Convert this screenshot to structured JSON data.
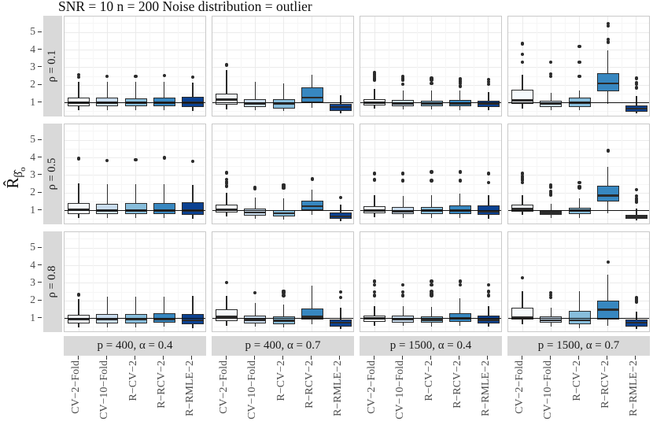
{
  "chart_data": {
    "type": "boxplot-facets",
    "title": "SNR = 10 n = 200 Noise distribution = outlier",
    "ylabel_main": "R̂",
    "ylabel_sub": "β̂",
    "ylabel_subsub": "o",
    "y_ticks": [
      1,
      2,
      3,
      4,
      5
    ],
    "ylim": [
      0.18,
      5.9
    ],
    "grid": "on",
    "legend": "none",
    "reference_line_y": 1,
    "categories": [
      "CV−2−Fold",
      "CV−10−Fold",
      "R−CV−2",
      "R−RCV−2",
      "R−RMLE−2"
    ],
    "row_facets": [
      "ρ = 0.1",
      "ρ = 0.5",
      "ρ = 0.8"
    ],
    "col_facets": [
      "p = 400, α = 0.4",
      "p = 400, α = 0.7",
      "p = 1500, α = 0.4",
      "p = 1500, α = 0.7"
    ],
    "box_fills": [
      "#F6FAFD",
      "#C9DCEE",
      "#87BDDB",
      "#3787C0",
      "#0B4191"
    ],
    "colors": {
      "strip_bg": "#D9D9D9",
      "box_border": "#2b2b2b",
      "reference_line": "#111111",
      "grid_major": "#ebebeb",
      "grid_minor": "#f6f6f6",
      "axis_text": "#4d4d4d"
    },
    "box_value_order": [
      "whisker_low",
      "q1",
      "median",
      "q3",
      "whisker_high",
      "outliers"
    ],
    "panels": [
      {
        "row": 0,
        "col": 0,
        "boxes": [
          [
            0.6,
            0.82,
            1.0,
            1.3,
            2.2,
            [
              2.45,
              2.58
            ]
          ],
          [
            0.6,
            0.8,
            1.0,
            1.28,
            2.2,
            [
              2.5
            ]
          ],
          [
            0.6,
            0.8,
            1.0,
            1.26,
            2.18,
            [
              2.5
            ]
          ],
          [
            0.6,
            0.82,
            1.0,
            1.28,
            2.2,
            [
              2.55
            ]
          ],
          [
            0.55,
            0.78,
            1.0,
            1.32,
            2.15,
            [
              2.45
            ]
          ]
        ]
      },
      {
        "row": 0,
        "col": 1,
        "boxes": [
          [
            0.62,
            0.88,
            1.18,
            1.5,
            2.85,
            [
              3.15
            ]
          ],
          [
            0.58,
            0.76,
            0.95,
            1.2,
            2.2,
            []
          ],
          [
            0.52,
            0.66,
            0.93,
            1.2,
            2.1,
            []
          ],
          [
            0.72,
            1.02,
            1.3,
            1.9,
            2.6,
            []
          ],
          [
            0.42,
            0.55,
            0.75,
            0.95,
            1.45,
            []
          ]
        ]
      },
      {
        "row": 0,
        "col": 2,
        "boxes": [
          [
            0.65,
            0.85,
            1.0,
            1.22,
            1.8,
            [
              2.3,
              2.4,
              2.5,
              2.62,
              2.72
            ]
          ],
          [
            0.62,
            0.82,
            0.97,
            1.15,
            1.7,
            [
              2.05,
              2.3,
              2.4,
              2.5
            ]
          ],
          [
            0.62,
            0.8,
            0.95,
            1.12,
            1.68,
            [
              2.1,
              2.3,
              2.4
            ]
          ],
          [
            0.6,
            0.8,
            0.97,
            1.15,
            1.7,
            [
              1.95,
              2.1,
              2.22,
              2.35
            ]
          ],
          [
            0.58,
            0.78,
            0.93,
            1.1,
            1.62,
            [
              2.05,
              2.2,
              2.32
            ]
          ]
        ]
      },
      {
        "row": 0,
        "col": 3,
        "boxes": [
          [
            0.65,
            0.95,
            1.15,
            1.75,
            2.6,
            [
              3.3,
              3.75,
              4.35
            ]
          ],
          [
            0.6,
            0.78,
            0.95,
            1.12,
            1.55,
            [
              2.5,
              2.65,
              3.3
            ]
          ],
          [
            0.58,
            0.75,
            1.0,
            1.28,
            1.7,
            [
              2.5,
              3.3,
              4.2
            ]
          ],
          [
            0.95,
            1.65,
            2.1,
            2.7,
            4.0,
            [
              4.45,
              4.6,
              5.35,
              5.5
            ]
          ],
          [
            0.4,
            0.5,
            0.68,
            0.85,
            1.4,
            [
              1.85,
              2.05,
              2.15,
              2.4
            ]
          ]
        ]
      },
      {
        "row": 1,
        "col": 0,
        "boxes": [
          [
            0.6,
            0.82,
            1.05,
            1.45,
            2.55,
            [
              3.95
            ]
          ],
          [
            0.6,
            0.8,
            1.0,
            1.4,
            2.5,
            [
              3.85
            ]
          ],
          [
            0.6,
            0.8,
            1.0,
            1.42,
            2.5,
            [
              3.9
            ]
          ],
          [
            0.6,
            0.82,
            1.0,
            1.45,
            2.5,
            [
              4.0
            ]
          ],
          [
            0.55,
            0.78,
            1.0,
            1.48,
            2.45,
            [
              3.8
            ]
          ]
        ]
      },
      {
        "row": 1,
        "col": 1,
        "boxes": [
          [
            0.65,
            0.88,
            1.08,
            1.32,
            2.0,
            [
              2.4,
              2.55,
              2.65,
              2.78,
              3.15
            ]
          ],
          [
            0.55,
            0.72,
            0.9,
            1.1,
            1.75,
            [
              2.25,
              2.32
            ]
          ],
          [
            0.5,
            0.65,
            0.85,
            1.05,
            1.7,
            [
              2.28,
              2.36,
              2.45
            ]
          ],
          [
            0.75,
            1.05,
            1.25,
            1.55,
            2.2,
            [
              2.8
            ]
          ],
          [
            0.4,
            0.52,
            0.68,
            0.88,
            1.35,
            [
              1.75
            ]
          ]
        ]
      },
      {
        "row": 1,
        "col": 2,
        "boxes": [
          [
            0.62,
            0.85,
            1.0,
            1.25,
            1.9,
            [
              2.75,
              3.1
            ]
          ],
          [
            0.6,
            0.8,
            0.95,
            1.2,
            1.85,
            [
              2.7,
              3.1
            ]
          ],
          [
            0.6,
            0.8,
            1.0,
            1.22,
            1.9,
            [
              2.7,
              3.2
            ]
          ],
          [
            0.6,
            0.82,
            1.0,
            1.3,
            1.95,
            [
              2.7,
              3.2
            ]
          ],
          [
            0.55,
            0.75,
            0.95,
            1.28,
            1.9,
            [
              2.6,
              3.1
            ]
          ]
        ]
      },
      {
        "row": 1,
        "col": 3,
        "boxes": [
          [
            0.75,
            0.95,
            1.1,
            1.35,
            1.9,
            [
              2.6,
              2.75,
              2.85,
              2.95,
              3.1
            ]
          ],
          [
            0.6,
            0.78,
            0.88,
            1.0,
            1.4,
            [
              1.9,
              2.0,
              2.1,
              2.35,
              2.45
            ]
          ],
          [
            0.6,
            0.82,
            1.0,
            1.18,
            1.7,
            [
              2.3,
              2.38,
              2.6
            ]
          ],
          [
            0.85,
            1.5,
            1.85,
            2.4,
            3.5,
            [
              4.4
            ]
          ],
          [
            0.45,
            0.55,
            0.65,
            0.78,
            1.1,
            [
              1.5,
              1.6,
              1.7,
              1.82,
              2.2
            ]
          ]
        ]
      },
      {
        "row": 2,
        "col": 0,
        "boxes": [
          [
            0.5,
            0.72,
            0.95,
            1.2,
            2.1,
            [
              2.35
            ]
          ],
          [
            0.5,
            0.72,
            0.95,
            1.25,
            2.25,
            []
          ],
          [
            0.5,
            0.72,
            0.95,
            1.25,
            2.25,
            []
          ],
          [
            0.55,
            0.75,
            0.97,
            1.3,
            2.25,
            []
          ],
          [
            0.45,
            0.68,
            0.9,
            1.25,
            2.3,
            []
          ]
        ]
      },
      {
        "row": 2,
        "col": 1,
        "boxes": [
          [
            0.6,
            0.85,
            1.1,
            1.5,
            2.3,
            [
              3.05
            ]
          ],
          [
            0.55,
            0.72,
            0.92,
            1.15,
            1.9,
            [
              2.45
            ]
          ],
          [
            0.5,
            0.68,
            0.88,
            1.1,
            1.8,
            [
              2.3,
              2.45,
              2.55
            ]
          ],
          [
            0.65,
            0.95,
            1.1,
            1.55,
            2.85,
            []
          ],
          [
            0.4,
            0.55,
            0.75,
            0.92,
            1.6,
            [
              2.2,
              2.5
            ]
          ]
        ]
      },
      {
        "row": 2,
        "col": 2,
        "boxes": [
          [
            0.6,
            0.82,
            1.0,
            1.18,
            1.7,
            [
              2.3,
              2.5,
              2.9,
              3.1
            ]
          ],
          [
            0.58,
            0.78,
            0.95,
            1.15,
            1.7,
            [
              2.3,
              2.5,
              2.9
            ]
          ],
          [
            0.55,
            0.75,
            0.92,
            1.12,
            1.65,
            [
              2.3,
              2.4,
              2.52,
              2.9,
              3.1
            ]
          ],
          [
            0.6,
            0.8,
            1.0,
            1.3,
            2.15,
            [
              2.9,
              3.1
            ]
          ],
          [
            0.55,
            0.72,
            0.92,
            1.15,
            1.7,
            [
              2.3,
              2.52,
              2.9
            ]
          ]
        ]
      },
      {
        "row": 2,
        "col": 3,
        "boxes": [
          [
            0.68,
            0.95,
            1.05,
            1.6,
            2.55,
            [
              3.3
            ]
          ],
          [
            0.55,
            0.75,
            0.9,
            1.12,
            1.6,
            [
              2.2,
              2.32,
              2.45
            ]
          ],
          [
            0.45,
            0.68,
            0.9,
            1.45,
            2.55,
            []
          ],
          [
            0.6,
            0.95,
            1.5,
            2.0,
            3.5,
            [
              4.2
            ]
          ],
          [
            0.4,
            0.55,
            0.75,
            0.92,
            1.4,
            [
              1.95,
              2.05,
              2.12,
              2.2
            ]
          ]
        ]
      }
    ]
  }
}
